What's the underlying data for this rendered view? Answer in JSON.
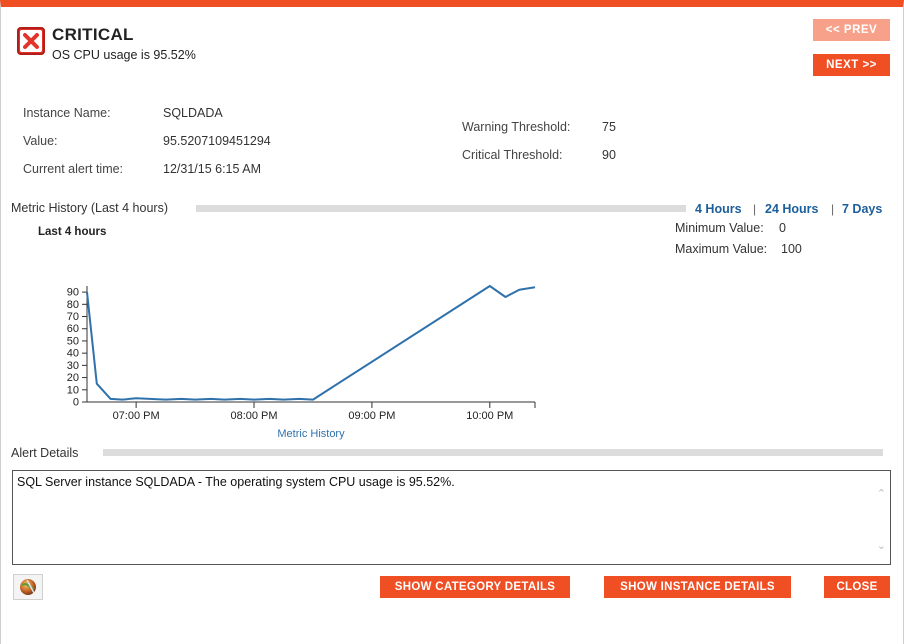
{
  "alert": {
    "severity": "CRITICAL",
    "summary": "OS CPU usage is 95.52%",
    "severity_color": "#e3342b"
  },
  "nav": {
    "prev_label": "<< PREV",
    "next_label": "NEXT >>"
  },
  "info": {
    "instance_label": "Instance Name:",
    "instance_value": "SQLDADA",
    "value_label": "Value:",
    "value_value": "95.5207109451294",
    "time_label": "Current alert time:",
    "time_value": "12/31/15 6:15 AM",
    "warning_label": "Warning Threshold:",
    "warning_value": "75",
    "critical_label": "Critical Threshold:",
    "critical_value": "90"
  },
  "metric": {
    "section_title": "Metric History (Last 4 hours)",
    "range_4h": "4 Hours",
    "range_24h": "24 Hours",
    "range_7d": "7 Days",
    "separator": "|",
    "chart_caption": "Last 4 hours",
    "min_label": "Minimum Value:",
    "min_value": "0",
    "max_label": "Maximum Value:",
    "max_value": "100"
  },
  "chart_data": {
    "type": "line",
    "title": "",
    "xlabel": "Metric History",
    "ylabel": "",
    "ylim": [
      0,
      95
    ],
    "yticks": [
      0,
      10,
      20,
      30,
      40,
      50,
      60,
      70,
      80,
      90
    ],
    "xticks": [
      "07:00 PM",
      "08:00 PM",
      "09:00 PM",
      "10:00 PM"
    ],
    "xtick_minutes": [
      0,
      60,
      120,
      180
    ],
    "series": [
      {
        "color": "#2f72ab",
        "x_minutes": [
          -25,
          -20,
          -13,
          -7,
          0,
          7,
          15,
          23,
          30,
          38,
          45,
          53,
          60,
          68,
          75,
          83,
          90,
          180,
          188,
          195,
          203
        ],
        "values": [
          90,
          15,
          2.5,
          2,
          3,
          2.5,
          2,
          2.5,
          2,
          2.5,
          2,
          2.5,
          2,
          2.5,
          2,
          2.5,
          2,
          95,
          86,
          92,
          94
        ]
      }
    ],
    "grid": false
  },
  "details": {
    "section_title": "Alert Details",
    "text": "SQL Server instance SQLDADA - The operating system CPU usage is 95.52%."
  },
  "actions": {
    "category_label": "SHOW CATEGORY DETAILS",
    "instance_label": "SHOW INSTANCE DETAILS",
    "close_label": "CLOSE"
  },
  "colors": {
    "accent": "#f04e23",
    "accent_disabled": "#f7a18a",
    "link": "#1c5f9a"
  },
  "icons": {
    "severity": "critical-x-icon",
    "globe": "globe-icon",
    "scroll_up": "chevron-up-icon",
    "scroll_down": "chevron-down-icon"
  }
}
